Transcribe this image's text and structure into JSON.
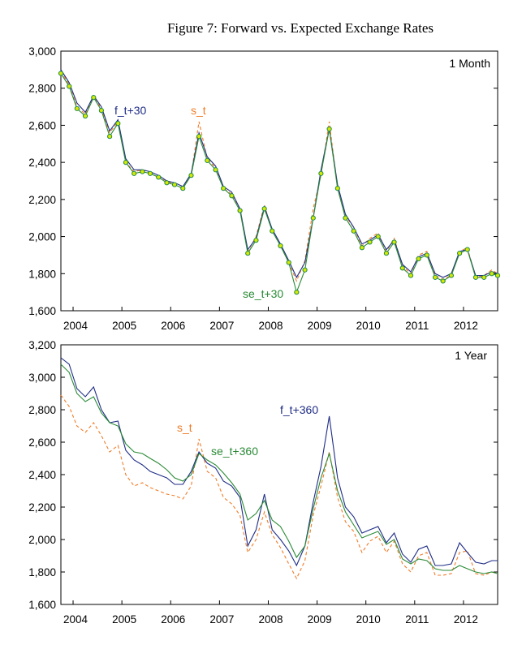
{
  "title": "Figure 7: Forward vs. Expected Exchange Rates",
  "colors": {
    "forward": "#1f2d86",
    "spot": "#f07c28",
    "expected": "#2a8a35",
    "marker_fill": "#d6e800",
    "marker_edge": "#1f8a4a"
  },
  "chart_data": [
    {
      "type": "line",
      "panel_label": "1 Month",
      "xlabel": "",
      "ylabel": "",
      "xlim": [
        2003.75,
        2012.7
      ],
      "ylim": [
        1600,
        3000
      ],
      "x_ticks": [
        "2004",
        "2005",
        "2006",
        "2007",
        "2008",
        "2009",
        "2010",
        "2011",
        "2012"
      ],
      "y_ticks": [
        "1,600",
        "1,800",
        "2,000",
        "2,200",
        "2,400",
        "2,600",
        "2,800",
        "3,000"
      ],
      "y_tick_values": [
        1600,
        1800,
        2000,
        2200,
        2400,
        2600,
        2800,
        3000
      ],
      "annotations": [
        "f_t+30",
        "s_t",
        "se_t+30"
      ],
      "x": [
        2003.75,
        2003.92,
        2004.08,
        2004.25,
        2004.42,
        2004.58,
        2004.75,
        2004.92,
        2005.08,
        2005.25,
        2005.42,
        2005.58,
        2005.75,
        2005.92,
        2006.08,
        2006.25,
        2006.42,
        2006.58,
        2006.75,
        2006.92,
        2007.08,
        2007.25,
        2007.42,
        2007.58,
        2007.75,
        2007.92,
        2008.08,
        2008.25,
        2008.42,
        2008.58,
        2008.75,
        2008.92,
        2009.08,
        2009.25,
        2009.42,
        2009.58,
        2009.75,
        2009.92,
        2010.08,
        2010.25,
        2010.42,
        2010.58,
        2010.75,
        2010.92,
        2011.08,
        2011.25,
        2011.42,
        2011.58,
        2011.75,
        2011.92,
        2012.08,
        2012.25,
        2012.42,
        2012.58,
        2012.7
      ],
      "series": [
        {
          "name": "s_t",
          "style": "dashed",
          "color": "spot",
          "values": [
            2890,
            2820,
            2700,
            2660,
            2760,
            2690,
            2560,
            2620,
            2400,
            2350,
            2360,
            2340,
            2320,
            2300,
            2280,
            2260,
            2330,
            2620,
            2420,
            2370,
            2260,
            2230,
            2150,
            1920,
            2000,
            2170,
            2030,
            1950,
            1860,
            1760,
            1870,
            2150,
            2330,
            2620,
            2260,
            2110,
            2050,
            1950,
            1990,
            2020,
            1920,
            1990,
            1840,
            1800,
            1900,
            1920,
            1790,
            1770,
            1790,
            1920,
            1940,
            1780,
            1790,
            1820,
            1800
          ]
        },
        {
          "name": "f_t+30",
          "style": "solid",
          "color": "forward",
          "values": [
            2900,
            2830,
            2720,
            2670,
            2760,
            2700,
            2570,
            2630,
            2420,
            2360,
            2360,
            2350,
            2330,
            2300,
            2290,
            2270,
            2340,
            2560,
            2430,
            2380,
            2270,
            2240,
            2150,
            1930,
            1990,
            2160,
            2040,
            1960,
            1870,
            1780,
            1860,
            2100,
            2360,
            2580,
            2280,
            2120,
            2050,
            1960,
            1980,
            2010,
            1930,
            1980,
            1850,
            1810,
            1890,
            1910,
            1800,
            1780,
            1800,
            1920,
            1930,
            1790,
            1790,
            1810,
            1800
          ]
        },
        {
          "name": "se_t+30",
          "style": "markers",
          "color": "expected",
          "values": [
            2880,
            2810,
            2690,
            2650,
            2750,
            2680,
            2540,
            2610,
            2400,
            2340,
            2350,
            2340,
            2320,
            2290,
            2280,
            2260,
            2330,
            2540,
            2410,
            2360,
            2260,
            2220,
            2140,
            1910,
            1980,
            2150,
            2030,
            1950,
            1860,
            1700,
            1820,
            2100,
            2340,
            2580,
            2260,
            2100,
            2030,
            1940,
            1970,
            2000,
            1910,
            1970,
            1830,
            1790,
            1880,
            1900,
            1780,
            1760,
            1790,
            1910,
            1930,
            1780,
            1780,
            1800,
            1790
          ]
        }
      ]
    },
    {
      "type": "line",
      "panel_label": "1 Year",
      "xlabel": "",
      "ylabel": "",
      "xlim": [
        2003.75,
        2012.7
      ],
      "ylim": [
        1600,
        3200
      ],
      "x_ticks": [
        "2004",
        "2005",
        "2006",
        "2007",
        "2008",
        "2009",
        "2010",
        "2011",
        "2012"
      ],
      "y_ticks": [
        "1,600",
        "1,800",
        "2,000",
        "2,200",
        "2,400",
        "2,600",
        "2,800",
        "3,000",
        "3,200"
      ],
      "y_tick_values": [
        1600,
        1800,
        2000,
        2200,
        2400,
        2600,
        2800,
        3000,
        3200
      ],
      "annotations": [
        "s_t",
        "f_t+360",
        "se_t+360"
      ],
      "x": [
        2003.75,
        2003.92,
        2004.08,
        2004.25,
        2004.42,
        2004.58,
        2004.75,
        2004.92,
        2005.08,
        2005.25,
        2005.42,
        2005.58,
        2005.75,
        2005.92,
        2006.08,
        2006.25,
        2006.42,
        2006.58,
        2006.75,
        2006.92,
        2007.08,
        2007.25,
        2007.42,
        2007.58,
        2007.75,
        2007.92,
        2008.08,
        2008.25,
        2008.42,
        2008.58,
        2008.75,
        2008.92,
        2009.08,
        2009.25,
        2009.42,
        2009.58,
        2009.75,
        2009.92,
        2010.08,
        2010.25,
        2010.42,
        2010.58,
        2010.75,
        2010.92,
        2011.08,
        2011.25,
        2011.42,
        2011.58,
        2011.75,
        2011.92,
        2012.08,
        2012.25,
        2012.42,
        2012.58,
        2012.7
      ],
      "series": [
        {
          "name": "s_t",
          "style": "dashed",
          "color": "spot",
          "values": [
            2890,
            2820,
            2700,
            2660,
            2720,
            2640,
            2540,
            2580,
            2400,
            2330,
            2350,
            2320,
            2300,
            2280,
            2270,
            2250,
            2330,
            2620,
            2420,
            2380,
            2260,
            2220,
            2150,
            1920,
            2000,
            2170,
            2030,
            1950,
            1850,
            1760,
            1870,
            2150,
            2330,
            2540,
            2260,
            2110,
            2050,
            1920,
            1990,
            2020,
            1920,
            1990,
            1850,
            1800,
            1900,
            1920,
            1780,
            1780,
            1790,
            1920,
            1930,
            1790,
            1780,
            1800,
            1790
          ]
        },
        {
          "name": "f_t+360",
          "style": "solid",
          "color": "forward",
          "values": [
            3120,
            3080,
            2930,
            2880,
            2940,
            2800,
            2720,
            2730,
            2550,
            2490,
            2460,
            2420,
            2400,
            2380,
            2340,
            2340,
            2420,
            2540,
            2470,
            2440,
            2360,
            2330,
            2260,
            1960,
            2060,
            2280,
            2060,
            2000,
            1930,
            1840,
            1960,
            2230,
            2450,
            2760,
            2380,
            2200,
            2140,
            2040,
            2060,
            2080,
            1980,
            2040,
            1910,
            1860,
            1940,
            1960,
            1840,
            1840,
            1850,
            1980,
            1920,
            1860,
            1850,
            1870,
            1870
          ]
        },
        {
          "name": "se_t+360",
          "style": "solid",
          "color": "expected",
          "values": [
            3080,
            3030,
            2900,
            2850,
            2880,
            2780,
            2720,
            2700,
            2590,
            2540,
            2530,
            2500,
            2470,
            2430,
            2380,
            2360,
            2400,
            2530,
            2490,
            2460,
            2410,
            2350,
            2280,
            2120,
            2160,
            2240,
            2120,
            2080,
            1990,
            1890,
            1960,
            2190,
            2380,
            2530,
            2300,
            2170,
            2090,
            2010,
            2030,
            2050,
            1970,
            2000,
            1880,
            1850,
            1880,
            1870,
            1820,
            1810,
            1810,
            1840,
            1820,
            1800,
            1790,
            1800,
            1790
          ]
        }
      ]
    }
  ]
}
